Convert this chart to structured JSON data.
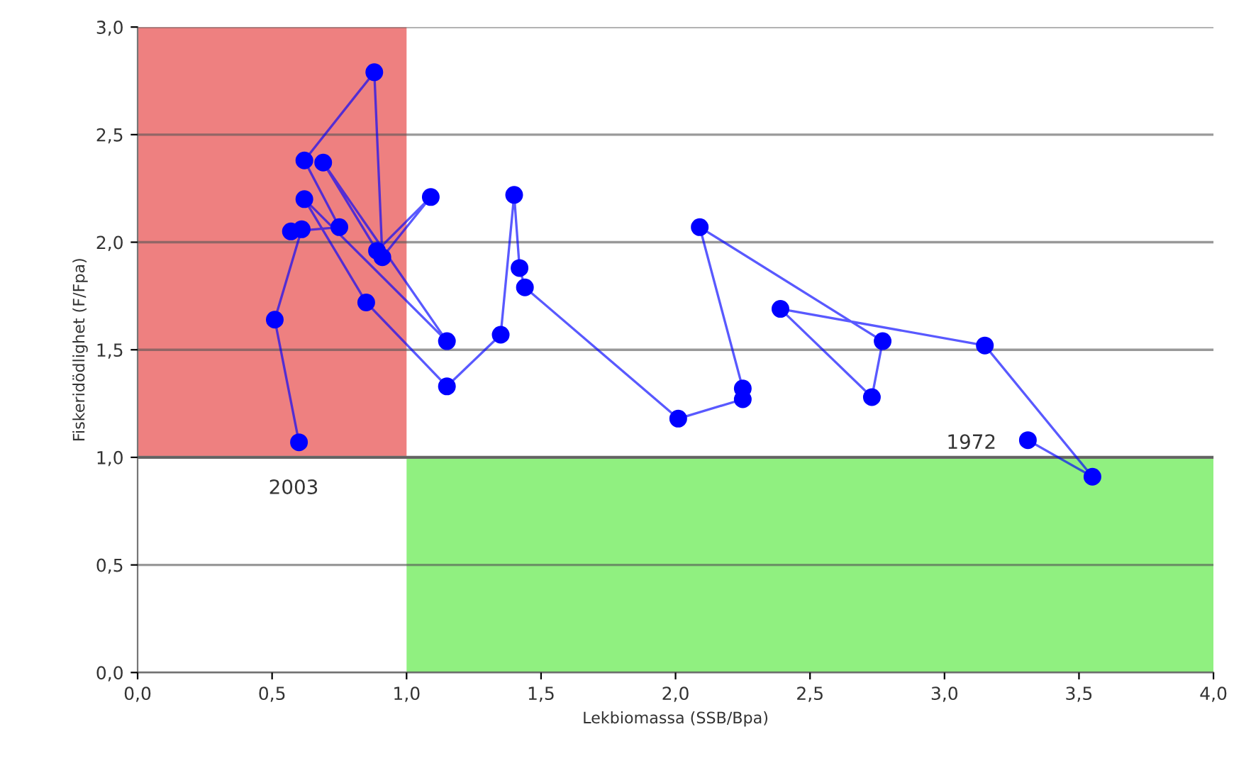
{
  "chart_data": {
    "type": "line",
    "xlabel": "Lekbiomassa (SSB/Bpa)",
    "ylabel": "Fiskeridödlighet (F/Fpa)",
    "xlim": [
      0,
      4
    ],
    "ylim": [
      0,
      3
    ],
    "xticks": [
      {
        "value": 0,
        "label": "0,0"
      },
      {
        "value": 0.5,
        "label": "0,5"
      },
      {
        "value": 1,
        "label": "1,0"
      },
      {
        "value": 1.5,
        "label": "1,5"
      },
      {
        "value": 2,
        "label": "2,0"
      },
      {
        "value": 2.5,
        "label": "2,5"
      },
      {
        "value": 3,
        "label": "3,0"
      },
      {
        "value": 3.5,
        "label": "3,5"
      },
      {
        "value": 4,
        "label": "4,0"
      }
    ],
    "yticks": [
      {
        "value": 0,
        "label": "0,0"
      },
      {
        "value": 0.5,
        "label": "0,5"
      },
      {
        "value": 1,
        "label": "1,0"
      },
      {
        "value": 1.5,
        "label": "1,5"
      },
      {
        "value": 2,
        "label": "2,0"
      },
      {
        "value": 2.5,
        "label": "2,5"
      },
      {
        "value": 3,
        "label": "3,0"
      }
    ],
    "grid": "y",
    "marker": "circle",
    "line_style": "solid",
    "legend": false,
    "ref_lines": [
      {
        "axis": "y",
        "value": 1,
        "color": "#777777"
      }
    ],
    "bands": [
      {
        "axis": "x",
        "from": 0,
        "to": 1,
        "color": "#ee8080"
      },
      {
        "axis": "x",
        "from": 1,
        "to": 4,
        "color": "#90f080"
      }
    ],
    "annotations": [
      "1972",
      "2003"
    ],
    "series": [
      {
        "color": "#0000ff",
        "x": [
          3.31,
          3.55,
          3.15,
          2.39,
          2.73,
          2.77,
          2.09,
          2.25,
          2.25,
          2.01,
          1.44,
          1.42,
          1.4,
          1.35,
          1.15,
          0.85,
          0.62,
          1.15,
          0.69,
          0.89,
          1.09,
          0.91,
          0.88,
          0.62,
          0.75,
          0.57,
          0.61,
          0.51,
          0.6
        ],
        "values": [
          1.08,
          0.91,
          1.52,
          1.69,
          1.28,
          1.54,
          2.07,
          1.32,
          1.27,
          1.18,
          1.79,
          1.88,
          2.22,
          1.57,
          1.33,
          1.72,
          2.2,
          1.54,
          2.37,
          1.96,
          2.21,
          1.93,
          2.79,
          2.38,
          2.07,
          2.05,
          2.06,
          1.64,
          1.07
        ]
      }
    ]
  }
}
